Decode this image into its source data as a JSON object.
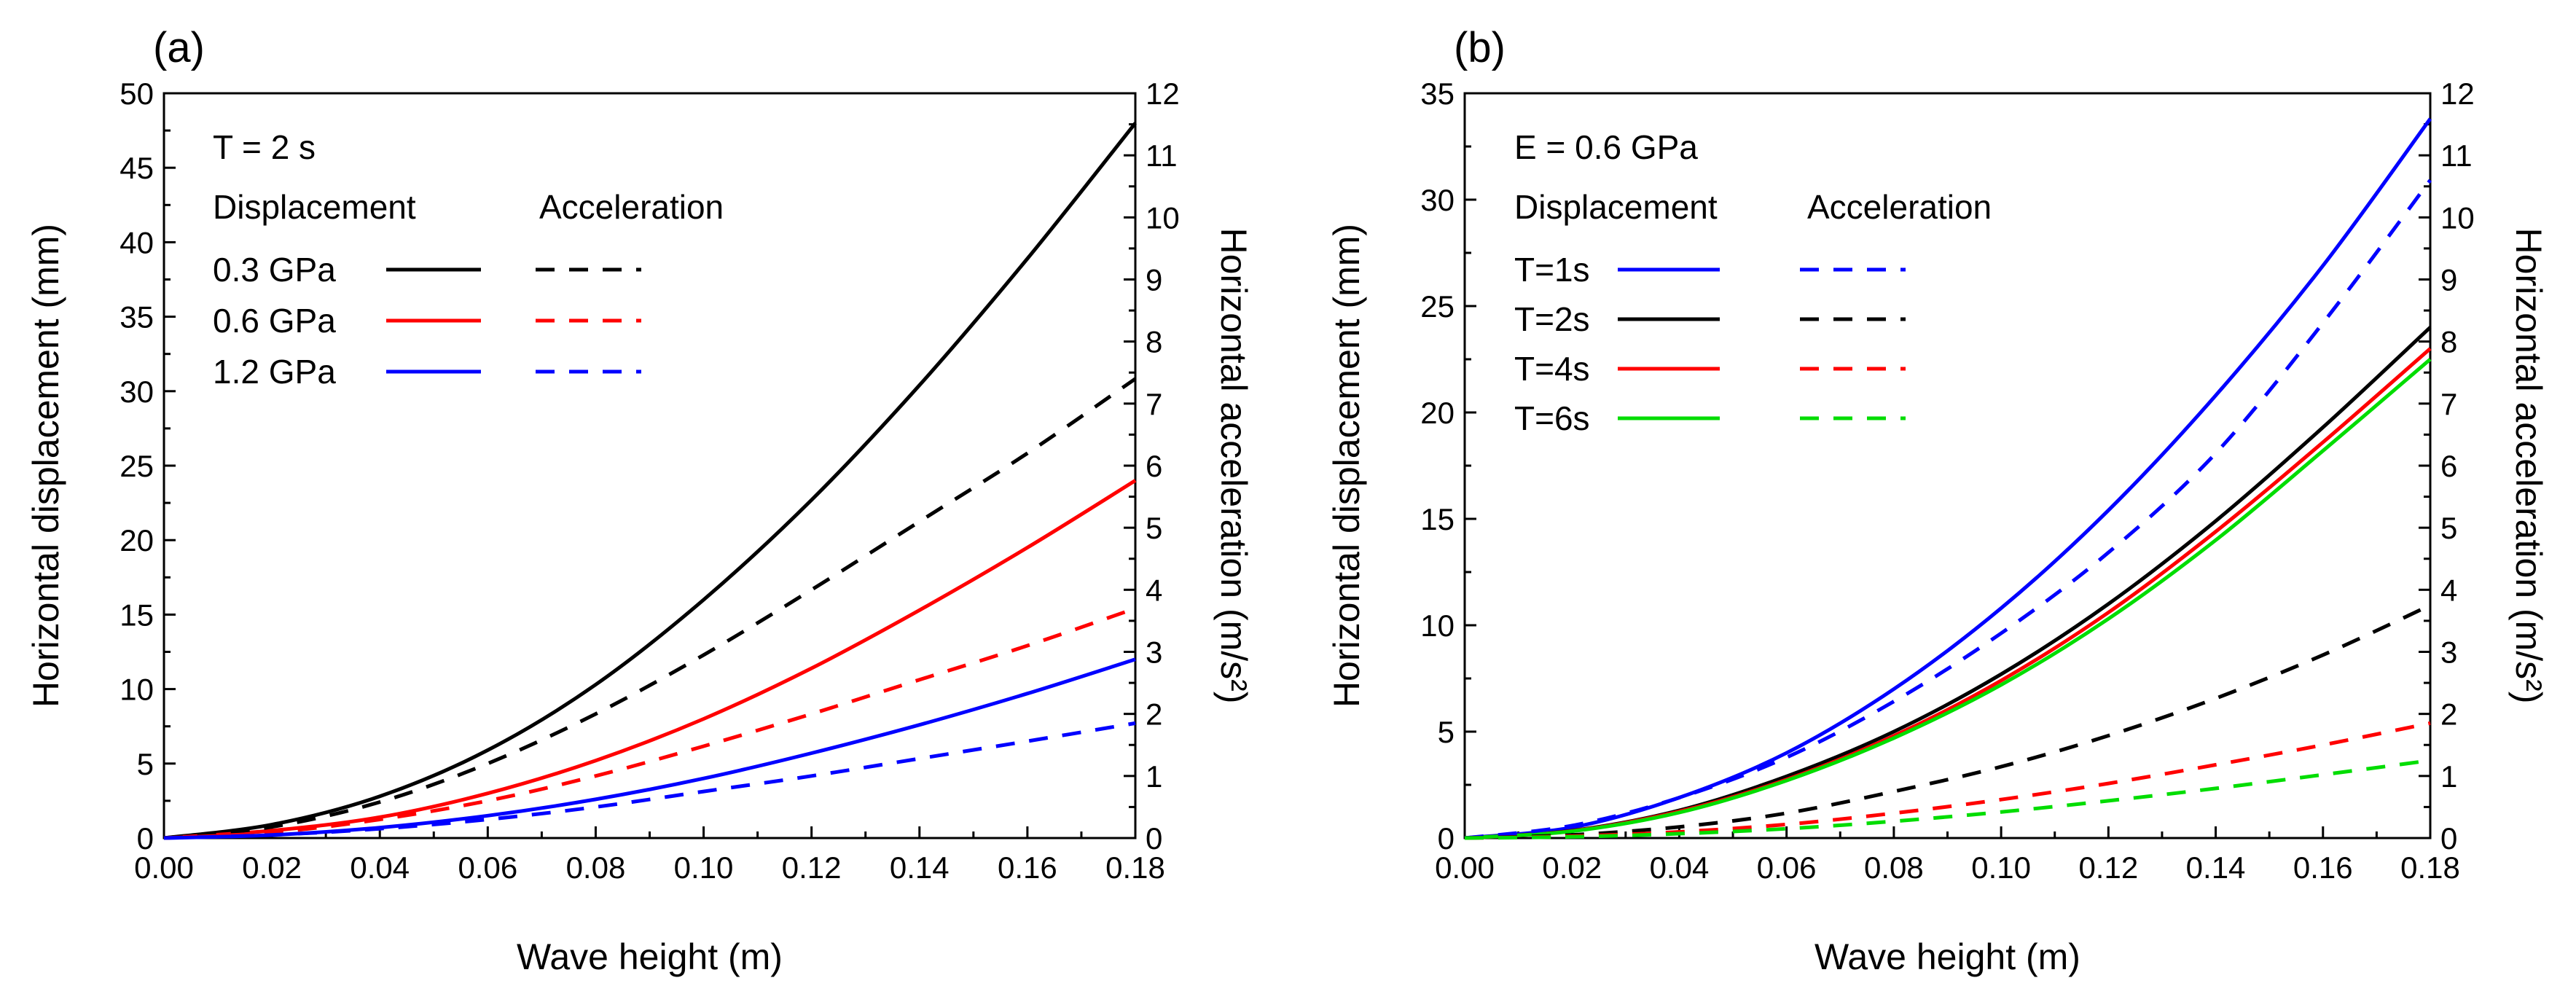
{
  "chart_data": [
    {
      "type": "line",
      "panel_label": "(a)",
      "xlabel": "Wave height (m)",
      "ylabel": "Horizontal displacement (mm)",
      "y2label": "Horizontal acceleration (m/s²)",
      "xlim": [
        0,
        0.18
      ],
      "ylim": [
        0,
        50
      ],
      "y2lim": [
        0,
        12
      ],
      "xticks": [
        "0.00",
        "0.02",
        "0.04",
        "0.06",
        "0.08",
        "0.10",
        "0.12",
        "0.14",
        "0.16",
        "0.18"
      ],
      "yticks": [
        "0",
        "5",
        "10",
        "15",
        "20",
        "25",
        "30",
        "35",
        "40",
        "45",
        "50"
      ],
      "y2ticks": [
        "0",
        "1",
        "2",
        "3",
        "4",
        "5",
        "6",
        "7",
        "8",
        "9",
        "10",
        "11",
        "12"
      ],
      "legend": {
        "condition": "T = 2 s",
        "col1_header": "Displacement",
        "col2_header": "Acceleration",
        "rows": [
          "0.3 GPa",
          "0.6 GPa",
          "1.2 GPa"
        ]
      },
      "x": [
        0,
        0.02,
        0.04,
        0.06,
        0.08,
        0.1,
        0.12,
        0.14,
        0.16,
        0.18
      ],
      "series": [
        {
          "name": "0.3 GPa",
          "kind": "displacement",
          "axis": "left",
          "color": "#000000",
          "dashed": false,
          "values": [
            0,
            0.9,
            2.8,
            5.9,
            10.3,
            16.0,
            22.7,
            30.4,
            38.9,
            48.0
          ]
        },
        {
          "name": "0.6 GPa",
          "kind": "displacement",
          "axis": "left",
          "color": "#ff0000",
          "dashed": false,
          "values": [
            0,
            0.5,
            1.4,
            3.0,
            5.2,
            8.0,
            11.4,
            15.3,
            19.5,
            24.0
          ]
        },
        {
          "name": "1.2 GPa",
          "kind": "displacement",
          "axis": "left",
          "color": "#0000ff",
          "dashed": false,
          "values": [
            0,
            0.2,
            0.7,
            1.5,
            2.6,
            4.0,
            5.7,
            7.6,
            9.7,
            12.0
          ]
        },
        {
          "name": "0.3 GPa",
          "kind": "acceleration",
          "axis": "right",
          "color": "#000000",
          "dashed": true,
          "values": [
            0,
            0.18,
            0.58,
            1.2,
            2.0,
            2.95,
            4.0,
            5.1,
            6.2,
            7.4
          ]
        },
        {
          "name": "0.6 GPa",
          "kind": "acceleration",
          "axis": "right",
          "color": "#ff0000",
          "dashed": true,
          "values": [
            0,
            0.09,
            0.3,
            0.6,
            1.0,
            1.48,
            2.0,
            2.55,
            3.1,
            3.7
          ]
        },
        {
          "name": "1.2 GPa",
          "kind": "acceleration",
          "axis": "right",
          "color": "#0000ff",
          "dashed": true,
          "values": [
            0,
            0.05,
            0.15,
            0.3,
            0.5,
            0.75,
            1.0,
            1.28,
            1.56,
            1.85
          ]
        }
      ]
    },
    {
      "type": "line",
      "panel_label": "(b)",
      "xlabel": "Wave height (m)",
      "ylabel": "Horizontal displacement (mm)",
      "y2label": "Horizontal acceleration (m/s²)",
      "xlim": [
        0,
        0.18
      ],
      "ylim": [
        0,
        35
      ],
      "y2lim": [
        0,
        12
      ],
      "xticks": [
        "0.00",
        "0.02",
        "0.04",
        "0.06",
        "0.08",
        "0.10",
        "0.12",
        "0.14",
        "0.16",
        "0.18"
      ],
      "yticks": [
        "0",
        "5",
        "10",
        "15",
        "20",
        "25",
        "30",
        "35"
      ],
      "y2ticks": [
        "0",
        "1",
        "2",
        "3",
        "4",
        "5",
        "6",
        "7",
        "8",
        "9",
        "10",
        "11",
        "12"
      ],
      "legend": {
        "condition": "E = 0.6 GPa",
        "col1_header": "Displacement",
        "col2_header": "Acceleration",
        "rows": [
          "T=1s",
          "T=2s",
          "T=4s",
          "T=6s"
        ]
      },
      "x": [
        0,
        0.02,
        0.04,
        0.06,
        0.08,
        0.1,
        0.12,
        0.14,
        0.16,
        0.18
      ],
      "series": [
        {
          "name": "T=1s",
          "kind": "displacement",
          "axis": "left",
          "color": "#0000ff",
          "dashed": false,
          "values": [
            0,
            0.5,
            1.9,
            4.0,
            7.0,
            10.8,
            15.4,
            20.8,
            26.9,
            33.8
          ]
        },
        {
          "name": "T=2s",
          "kind": "displacement",
          "axis": "left",
          "color": "#000000",
          "dashed": false,
          "values": [
            0,
            0.35,
            1.3,
            2.9,
            5.0,
            7.7,
            11.0,
            14.9,
            19.3,
            24.0
          ]
        },
        {
          "name": "T=4s",
          "kind": "displacement",
          "axis": "left",
          "color": "#ff0000",
          "dashed": false,
          "values": [
            0,
            0.33,
            1.25,
            2.75,
            4.8,
            7.4,
            10.6,
            14.4,
            18.6,
            23.0
          ]
        },
        {
          "name": "T=6s",
          "kind": "displacement",
          "axis": "left",
          "color": "#00dd00",
          "dashed": false,
          "values": [
            0,
            0.32,
            1.2,
            2.7,
            4.7,
            7.2,
            10.3,
            14.0,
            18.2,
            22.5
          ]
        },
        {
          "name": "T=1s",
          "kind": "acceleration",
          "axis": "right",
          "color": "#0000ff",
          "dashed": true,
          "values": [
            0,
            0.2,
            0.65,
            1.3,
            2.2,
            3.3,
            4.6,
            6.2,
            8.3,
            10.6
          ]
        },
        {
          "name": "T=2s",
          "kind": "acceleration",
          "axis": "right",
          "color": "#000000",
          "dashed": true,
          "values": [
            0,
            0.05,
            0.18,
            0.4,
            0.75,
            1.15,
            1.65,
            2.25,
            2.95,
            3.75
          ]
        },
        {
          "name": "T=4s",
          "kind": "acceleration",
          "axis": "right",
          "color": "#ff0000",
          "dashed": true,
          "values": [
            0,
            0.03,
            0.1,
            0.22,
            0.4,
            0.62,
            0.88,
            1.18,
            1.5,
            1.85
          ]
        },
        {
          "name": "T=6s",
          "kind": "acceleration",
          "axis": "right",
          "color": "#00dd00",
          "dashed": true,
          "values": [
            0,
            0.02,
            0.07,
            0.15,
            0.27,
            0.42,
            0.6,
            0.8,
            1.02,
            1.25
          ]
        }
      ]
    }
  ]
}
